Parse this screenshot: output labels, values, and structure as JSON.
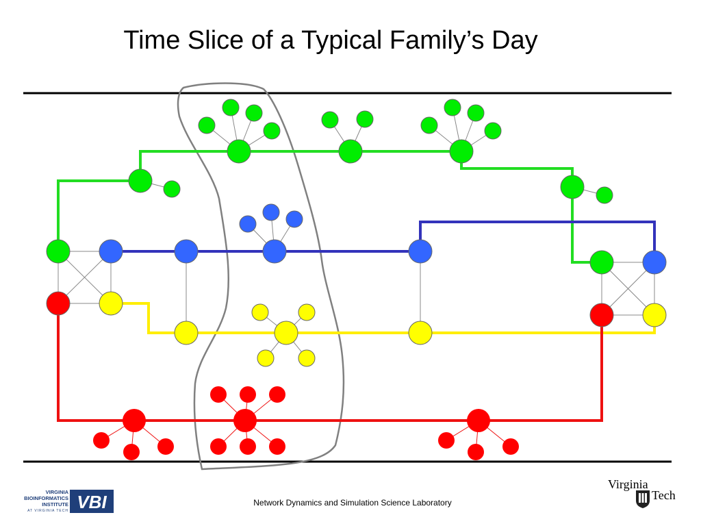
{
  "slide": {
    "title": "Time Slice of a Typical Family’s Day"
  },
  "footer": {
    "lab_name": "Network Dynamics and Simulation Science Laboratory",
    "vbi_logo": {
      "text_lines": [
        "VIRGINIA",
        "BIOINFORMATICS",
        "INSTITUTE"
      ],
      "subtext": "AT VIRGINIA TECH",
      "mark": "VBI"
    },
    "vt_logo": {
      "line1": "Virginia",
      "line2": "Tech"
    }
  },
  "colors": {
    "green": "#00ee00",
    "blue": "#3366ff",
    "yellow": "#ffff00",
    "red": "#ff0000",
    "trail_green": "#22dd22",
    "trail_blue": "#3333bb",
    "trail_yellow": "#ffee00",
    "trail_red": "#ee1111",
    "outline": "#808080",
    "vbi_blue": "#1f3f7a"
  },
  "legend": []
}
